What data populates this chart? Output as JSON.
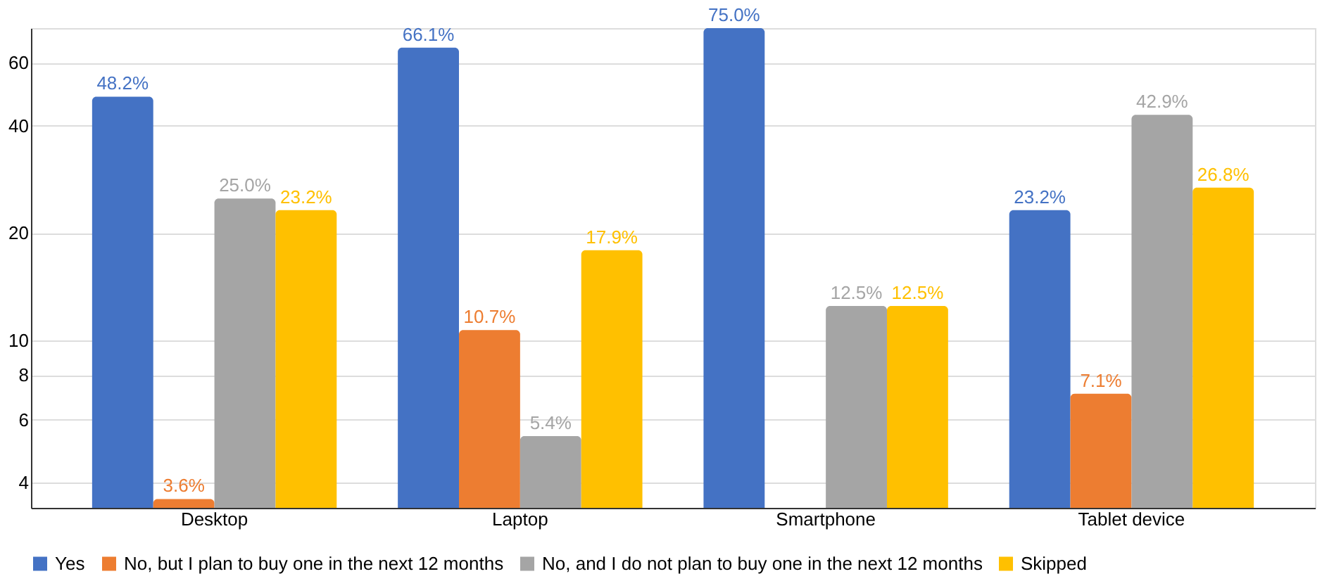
{
  "chart_data": {
    "type": "bar",
    "categories": [
      "Desktop",
      "Laptop",
      "Smartphone",
      "Tablet device"
    ],
    "series": [
      {
        "name": "Yes",
        "color": "#4472c4",
        "values": [
          48.2,
          66.1,
          75.0,
          23.2
        ],
        "value_labels": [
          "48.2%",
          "66.1%",
          "75.0%",
          "23.2%"
        ]
      },
      {
        "name": "No, but I plan to buy one in the next 12 months",
        "color": "#ed7d31",
        "values": [
          3.6,
          10.7,
          null,
          7.1
        ],
        "value_labels": [
          "3.6%",
          "10.7%",
          null,
          "7.1%"
        ]
      },
      {
        "name": "No, and I do not plan to buy one in the next 12 months",
        "color": "#a5a5a5",
        "values": [
          25.0,
          5.4,
          12.5,
          42.9
        ],
        "value_labels": [
          "25.0%",
          "5.4%",
          "12.5%",
          "42.9%"
        ]
      },
      {
        "name": "Skipped",
        "color": "#ffc000",
        "values": [
          23.2,
          17.9,
          12.5,
          26.8
        ],
        "value_labels": [
          "23.2%",
          "17.9%",
          "12.5%",
          "26.8%"
        ]
      }
    ],
    "log": "y",
    "ylim": [
      3.4,
      75
    ],
    "yticks": [
      4,
      6,
      8,
      10,
      20,
      40,
      60
    ],
    "grid": "y",
    "legend": "bottom"
  }
}
